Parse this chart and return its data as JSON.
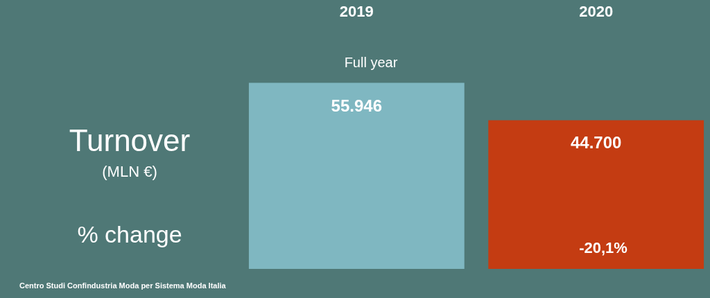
{
  "chart_data": {
    "type": "bar",
    "categories": [
      "2019",
      "2020"
    ],
    "values": [
      55946,
      44700
    ],
    "value_labels": [
      "55.946",
      "44.700"
    ],
    "colors": [
      "#7fb7c1",
      "#c43c12"
    ],
    "annotations": [
      "Turnover",
      "(MLN €)",
      "% change",
      "Full year",
      "-20,1%",
      "Centro Studi Confindustria Moda per Sistema Moda Italia"
    ]
  }
}
